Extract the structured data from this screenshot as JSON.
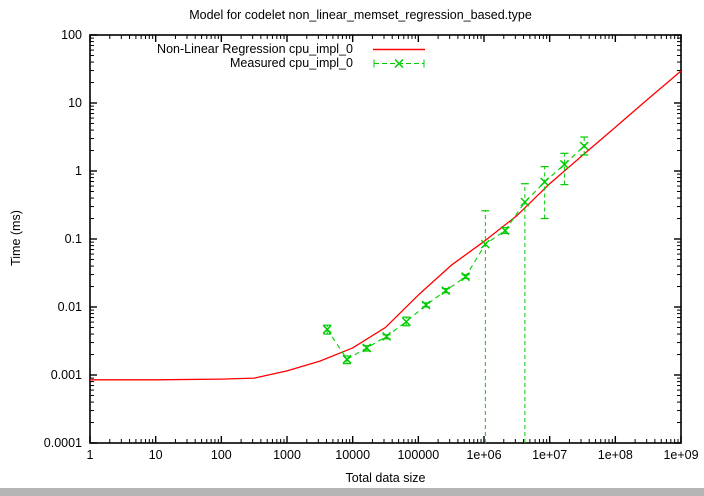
{
  "window": {
    "bottom_scrollbar_color": "#b4b4b4",
    "background_color": "#ffffff"
  },
  "chart_data": {
    "type": "line",
    "title": "Model for codelet non_linear_memset_regression_based.type",
    "xlabel": "Total data size",
    "ylabel": "Time (ms)",
    "x_scale": "log",
    "y_scale": "log",
    "xlim": [
      1,
      1000000000
    ],
    "ylim": [
      0.0001,
      100
    ],
    "grid": false,
    "legend_position": "top-center-inside",
    "axis_color": "#000000",
    "x_ticks": [
      {
        "v": 1,
        "label": "1"
      },
      {
        "v": 10,
        "label": "10"
      },
      {
        "v": 100,
        "label": "100"
      },
      {
        "v": 1000,
        "label": "1000"
      },
      {
        "v": 10000,
        "label": "10000"
      },
      {
        "v": 100000,
        "label": "100000"
      },
      {
        "v": 1000000,
        "label": "1e+06"
      },
      {
        "v": 10000000,
        "label": "1e+07"
      },
      {
        "v": 100000000,
        "label": "1e+08"
      },
      {
        "v": 1000000000,
        "label": "1e+09"
      }
    ],
    "y_ticks": [
      {
        "v": 0.0001,
        "label": "0.0001"
      },
      {
        "v": 0.001,
        "label": "0.001"
      },
      {
        "v": 0.01,
        "label": "0.01"
      },
      {
        "v": 0.1,
        "label": "0.1"
      },
      {
        "v": 1,
        "label": "1"
      },
      {
        "v": 10,
        "label": "10"
      },
      {
        "v": 100,
        "label": "100"
      }
    ],
    "series": [
      {
        "name": "Non-Linear Regression cpu_impl_0",
        "color": "#ff0000",
        "style": "solid-line",
        "points": [
          [
            1,
            0.00085
          ],
          [
            10,
            0.00085
          ],
          [
            100,
            0.00087
          ],
          [
            316,
            0.0009
          ],
          [
            1000,
            0.00115
          ],
          [
            3162,
            0.0016
          ],
          [
            10000,
            0.0025
          ],
          [
            31623,
            0.005
          ],
          [
            100000,
            0.015
          ],
          [
            316228,
            0.041
          ],
          [
            1000000,
            0.092
          ],
          [
            3162278,
            0.22
          ],
          [
            10000000,
            0.65
          ],
          [
            31622777,
            1.7
          ],
          [
            100000000,
            4.4
          ],
          [
            316227766,
            11.5
          ],
          [
            1000000000,
            29.5
          ]
        ]
      },
      {
        "name": "Measured cpu_impl_0",
        "color": "#00cc00",
        "style": "dashed-line-x-markers-errorbars",
        "points": [
          {
            "x": 4096,
            "y": 0.0047,
            "ylow": 0.004,
            "yhigh": 0.0054
          },
          {
            "x": 8192,
            "y": 0.0017,
            "ylow": 0.00147,
            "yhigh": 0.0019
          },
          {
            "x": 16384,
            "y": 0.0025,
            "ylow": 0.00225,
            "yhigh": 0.0027
          },
          {
            "x": 32768,
            "y": 0.0037,
            "ylow": 0.0034,
            "yhigh": 0.0039
          },
          {
            "x": 65536,
            "y": 0.0061,
            "ylow": 0.0053,
            "yhigh": 0.0071
          },
          {
            "x": 131072,
            "y": 0.0107,
            "ylow": 0.01,
            "yhigh": 0.0115
          },
          {
            "x": 262144,
            "y": 0.0174,
            "ylow": 0.0162,
            "yhigh": 0.0187
          },
          {
            "x": 524288,
            "y": 0.0279,
            "ylow": 0.0262,
            "yhigh": 0.0298
          },
          {
            "x": 1048576,
            "y": 0.084,
            "ylow": 0.0001,
            "yhigh": 0.26
          },
          {
            "x": 2097152,
            "y": 0.133,
            "ylow": 0.121,
            "yhigh": 0.147
          },
          {
            "x": 4194304,
            "y": 0.35,
            "ylow": 0.0001,
            "yhigh": 0.65
          },
          {
            "x": 8388608,
            "y": 0.69,
            "ylow": 0.2,
            "yhigh": 1.16
          },
          {
            "x": 16777216,
            "y": 1.25,
            "ylow": 0.63,
            "yhigh": 1.82
          },
          {
            "x": 33554432,
            "y": 2.33,
            "ylow": 1.72,
            "yhigh": 3.16
          }
        ]
      }
    ]
  }
}
